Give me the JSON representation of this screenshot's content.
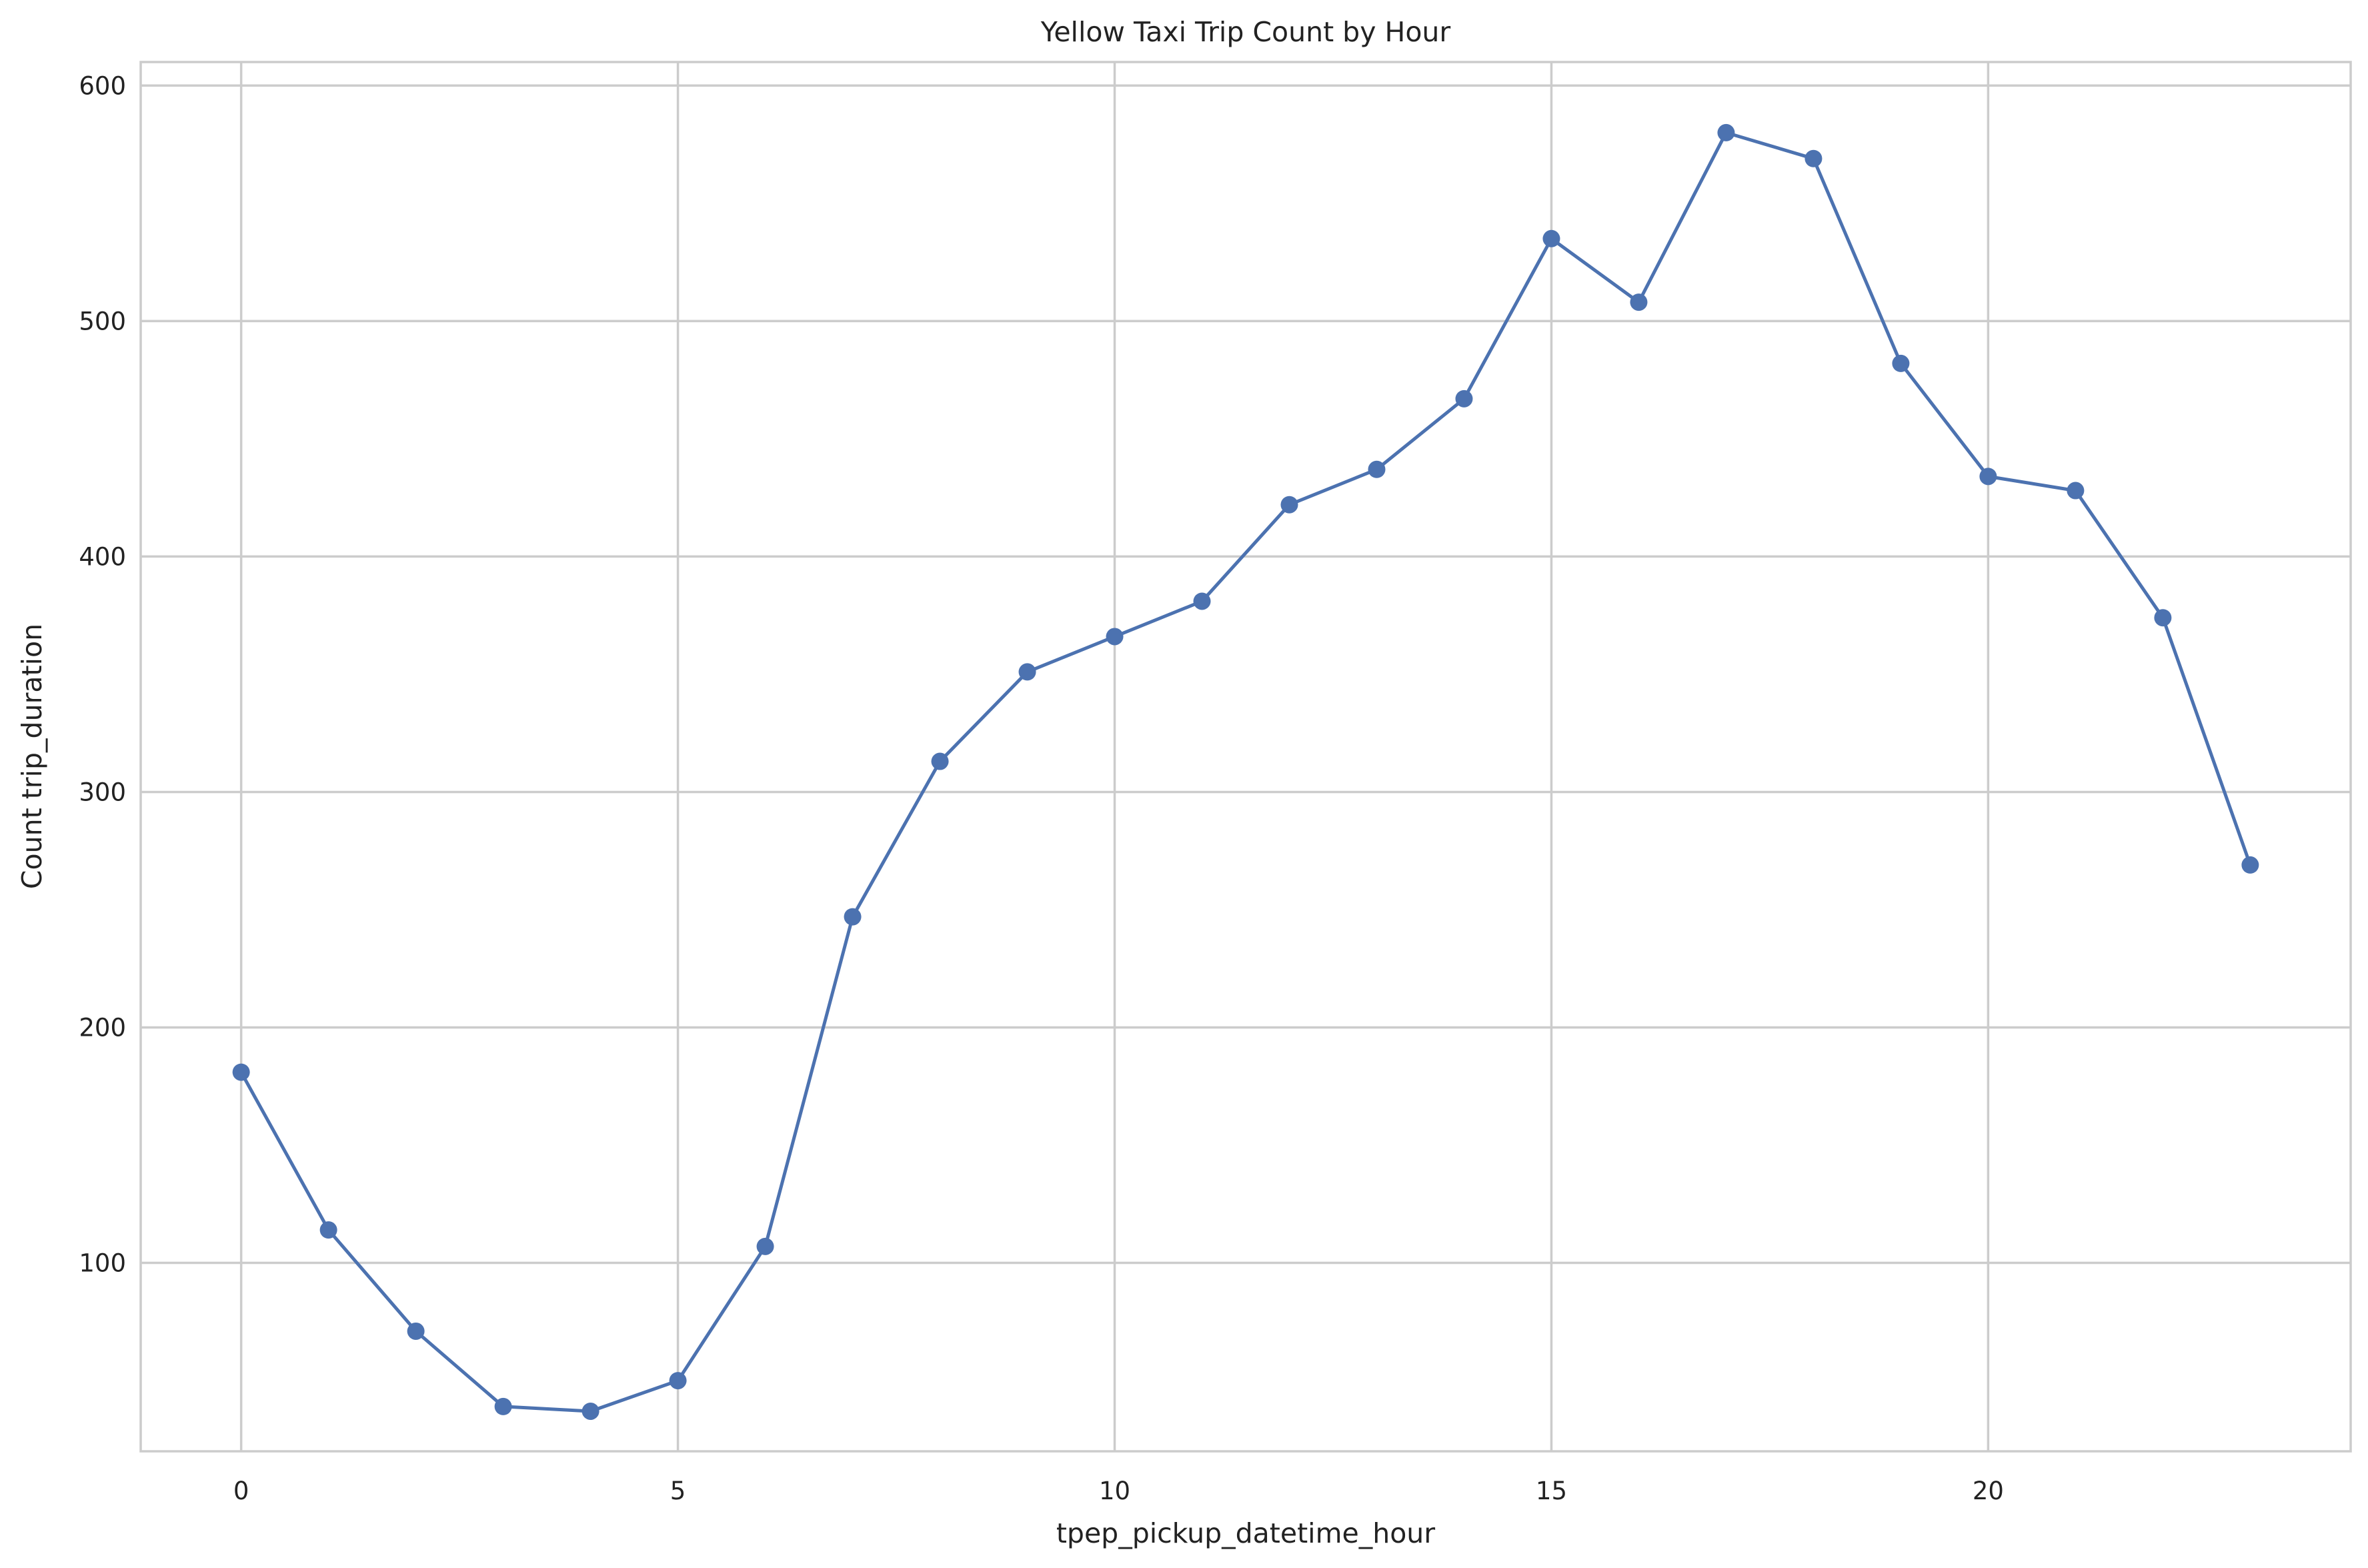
{
  "chart_data": {
    "type": "line",
    "title": "Yellow Taxi Trip Count by Hour",
    "xlabel": "tpep_pickup_datetime_hour",
    "ylabel": "Count trip_duration",
    "xlim": [
      -1.15,
      24.15
    ],
    "ylim": [
      20,
      610
    ],
    "xticks": [
      0,
      5,
      10,
      15,
      20
    ],
    "yticks": [
      100,
      200,
      300,
      400,
      500,
      600
    ],
    "grid": true,
    "series": [
      {
        "color": "#4c72b0",
        "marker": "circle",
        "x": [
          0,
          1,
          2,
          3,
          4,
          5,
          6,
          7,
          8,
          9,
          10,
          11,
          12,
          13,
          14,
          15,
          16,
          17,
          18,
          19,
          20,
          21,
          22,
          23
        ],
        "y": [
          181,
          114,
          71,
          39,
          37,
          50,
          107,
          247,
          313,
          351,
          366,
          381,
          422,
          437,
          467,
          535,
          508,
          580,
          569,
          482,
          434,
          428,
          374,
          269
        ]
      }
    ]
  }
}
